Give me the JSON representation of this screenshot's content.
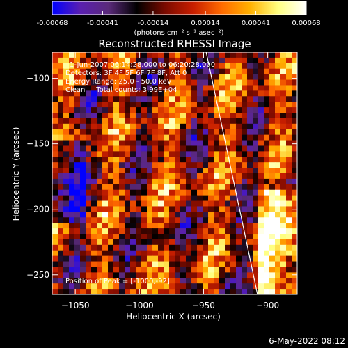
{
  "colorbar": {
    "tick_labels": [
      "-0.00068",
      "-0.00041",
      "-0.00014",
      "0.00014",
      "0.00041",
      "0.00068"
    ],
    "tick_values": [
      -0.00068,
      -0.00041,
      -0.00014,
      0.00014,
      0.00041,
      0.00068
    ],
    "range": [
      -0.00068,
      0.00068
    ],
    "unit_label": "(photons cm⁻² s⁻¹ asec⁻²)",
    "colors": [
      "#0000ff",
      "#5a1fb0",
      "#5a2a7a",
      "#000000",
      "#7a0a00",
      "#c81e00",
      "#ff6a00",
      "#ffb000",
      "#ffff80",
      "#ffffff"
    ]
  },
  "chart_data": {
    "type": "heatmap",
    "title": "Reconstructed RHESSI Image",
    "xlabel": "Heliocentric X (arcsec)",
    "ylabel": "Heliocentric Y (arcsec)",
    "xlim": [
      -1068,
      -877
    ],
    "ylim": [
      -265,
      -80
    ],
    "xticks": [
      -1050,
      -1000,
      -950,
      -900
    ],
    "xtick_labels": [
      "−1050",
      "−1000",
      "−950",
      "−900"
    ],
    "yticks": [
      -100,
      -150,
      -200,
      -250
    ],
    "ytick_labels": [
      "−100",
      "−150",
      "−200",
      "−250"
    ],
    "limb_curve": {
      "x": [
        -948,
        -938,
        -928,
        -918,
        -908
      ],
      "y": [
        -80,
        -126,
        -172,
        -218,
        -265
      ]
    },
    "annotations": [
      "1-Jun-2007 06:14:28.000 to 06:20:28.000",
      "Detectors: 3F 4F 5F 6F 7F 8F, Att 0",
      "Energy Range: 25.0 - 50.0 keV",
      "Clean     Total counts: 3.99E+04"
    ],
    "peak_text": "Position of Peak = [-1000,-92]"
  },
  "footer": {
    "date": "6-May-2022 08:12"
  }
}
